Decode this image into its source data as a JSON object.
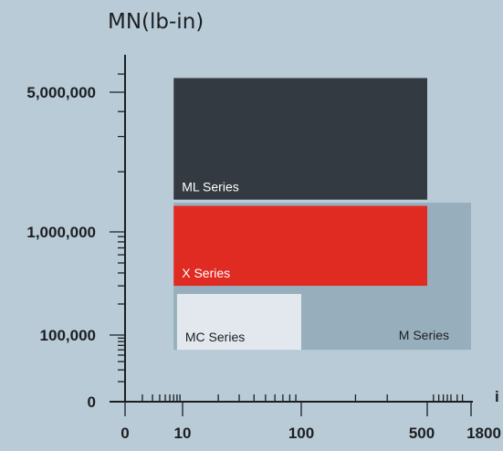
{
  "chart_data": {
    "type": "bar",
    "subtype": "range-blocks",
    "y_title": "MN(lb-in)",
    "x_axis_label": "i",
    "y_ticks": [
      {
        "label": "5,000,000",
        "value": 5000000
      },
      {
        "label": "1,000,000",
        "value": 1000000
      },
      {
        "label": "100,000",
        "value": 100000
      },
      {
        "label": "0",
        "value": 0
      }
    ],
    "x_ticks": [
      {
        "label": "0",
        "value": 0
      },
      {
        "label": "10",
        "value": 10
      },
      {
        "label": "100",
        "value": 100
      },
      {
        "label": "500",
        "value": 500
      },
      {
        "label": "1800",
        "value": 1800
      }
    ],
    "series": [
      {
        "name": "M Series",
        "x_range": [
          7,
          1800
        ],
        "y_range": [
          60000,
          1400000
        ],
        "color": "#97afbc",
        "label_color": "#1b1f22"
      },
      {
        "name": "ML Series",
        "x_range": [
          7,
          500
        ],
        "y_range": [
          1450000,
          6500000
        ],
        "color": "#333a41",
        "label_color": "#ffffff"
      },
      {
        "name": "X Series",
        "x_range": [
          7,
          500
        ],
        "y_range": [
          300000,
          1350000
        ],
        "color": "#e02b23",
        "label_color": "#ffffff"
      },
      {
        "name": "MC Series",
        "x_range": [
          8,
          100
        ],
        "y_range": [
          60000,
          250000
        ],
        "color": "#e2e8ee",
        "label_color": "#1b1f22"
      }
    ],
    "grid": false,
    "legend": "none"
  }
}
